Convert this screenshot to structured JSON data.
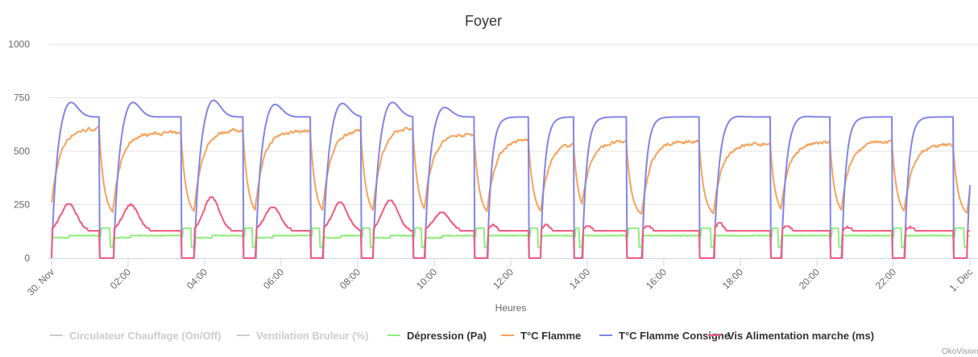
{
  "chart_data": {
    "type": "line",
    "title": "Foyer",
    "xlabel": "Heures",
    "ylabel": "",
    "ylim": [
      0,
      1000
    ],
    "yticks": [
      "0",
      "250",
      "500",
      "750",
      "1000"
    ],
    "xlim_hours": [
      0,
      24
    ],
    "xticks": [
      "30. Nov",
      "02:00",
      "04:00",
      "06:00",
      "08:00",
      "10:00",
      "12:00",
      "14:00",
      "16:00",
      "18:00",
      "20:00",
      "22:00",
      "1. Dec"
    ],
    "grid": true,
    "legend_position": "bottom",
    "series": [
      {
        "name": "Circulateur Chauffage (On/Off)",
        "color": "#cccccc",
        "visible": false
      },
      {
        "name": "Ventilation Bruleur (%)",
        "color": "#cccccc",
        "visible": false
      },
      {
        "name": "Dépression (Pa)",
        "color": "#90ed7d",
        "visible": true,
        "base": 95,
        "late_base": 105,
        "off_high": 140,
        "off_low": 50
      },
      {
        "name": "T°C Flamme",
        "color": "#f7a35c",
        "visible": true,
        "off_floor": 190,
        "start_value": 220
      },
      {
        "name": "T°C Flamme Consigne",
        "color": "#8085e9",
        "visible": true,
        "plateau": 660
      },
      {
        "name": "Vis Alimentation marche (ms)",
        "color": "#f15c80",
        "visible": true,
        "plateau": 125
      }
    ],
    "burner_cycles_hours": [
      {
        "on": 0.0,
        "off": 1.26,
        "consigne_peak": 745,
        "flamme": 605,
        "vis_peak": 250
      },
      {
        "on": 1.62,
        "off": 3.39,
        "consigne_peak": 745,
        "flamme": 585,
        "vis_peak": 245
      },
      {
        "on": 3.73,
        "off": 5.01,
        "consigne_peak": 755,
        "flamme": 600,
        "vis_peak": 280
      },
      {
        "on": 5.33,
        "off": 6.76,
        "consigne_peak": 735,
        "flamme": 595,
        "vis_peak": 235
      },
      {
        "on": 7.09,
        "off": 8.08,
        "consigne_peak": 740,
        "flamme": 600,
        "vis_peak": 255
      },
      {
        "on": 8.4,
        "off": 9.45,
        "consigne_peak": 745,
        "flamme": 610,
        "vis_peak": 265
      },
      {
        "on": 9.75,
        "off": 11.05,
        "consigne_peak": 720,
        "flamme": 580,
        "vis_peak": 210
      },
      {
        "on": 11.39,
        "off": 12.46,
        "consigne_peak": 660,
        "flamme": 555,
        "vis_peak": 150
      },
      {
        "on": 12.78,
        "off": 13.64,
        "consigne_peak": 660,
        "flamme": 540,
        "vis_peak": 150
      },
      {
        "on": 13.87,
        "off": 15.03,
        "consigne_peak": 660,
        "flamme": 545,
        "vis_peak": 145
      },
      {
        "on": 15.43,
        "off": 16.93,
        "consigne_peak": 660,
        "flamme": 545,
        "vis_peak": 145
      },
      {
        "on": 17.31,
        "off": 18.78,
        "consigne_peak": 670,
        "flamme": 535,
        "vis_peak": 160
      },
      {
        "on": 19.07,
        "off": 20.34,
        "consigne_peak": 670,
        "flamme": 540,
        "vis_peak": 145
      },
      {
        "on": 20.65,
        "off": 21.96,
        "consigne_peak": 660,
        "flamme": 545,
        "vis_peak": 140
      },
      {
        "on": 22.29,
        "off": 23.56,
        "consigne_peak": 660,
        "flamme": 530,
        "vis_peak": 140
      },
      {
        "on": 23.92,
        "off": 24.5,
        "consigne_peak": 660,
        "flamme": 540,
        "vis_peak": 130
      }
    ]
  },
  "credits": "OkoVision"
}
